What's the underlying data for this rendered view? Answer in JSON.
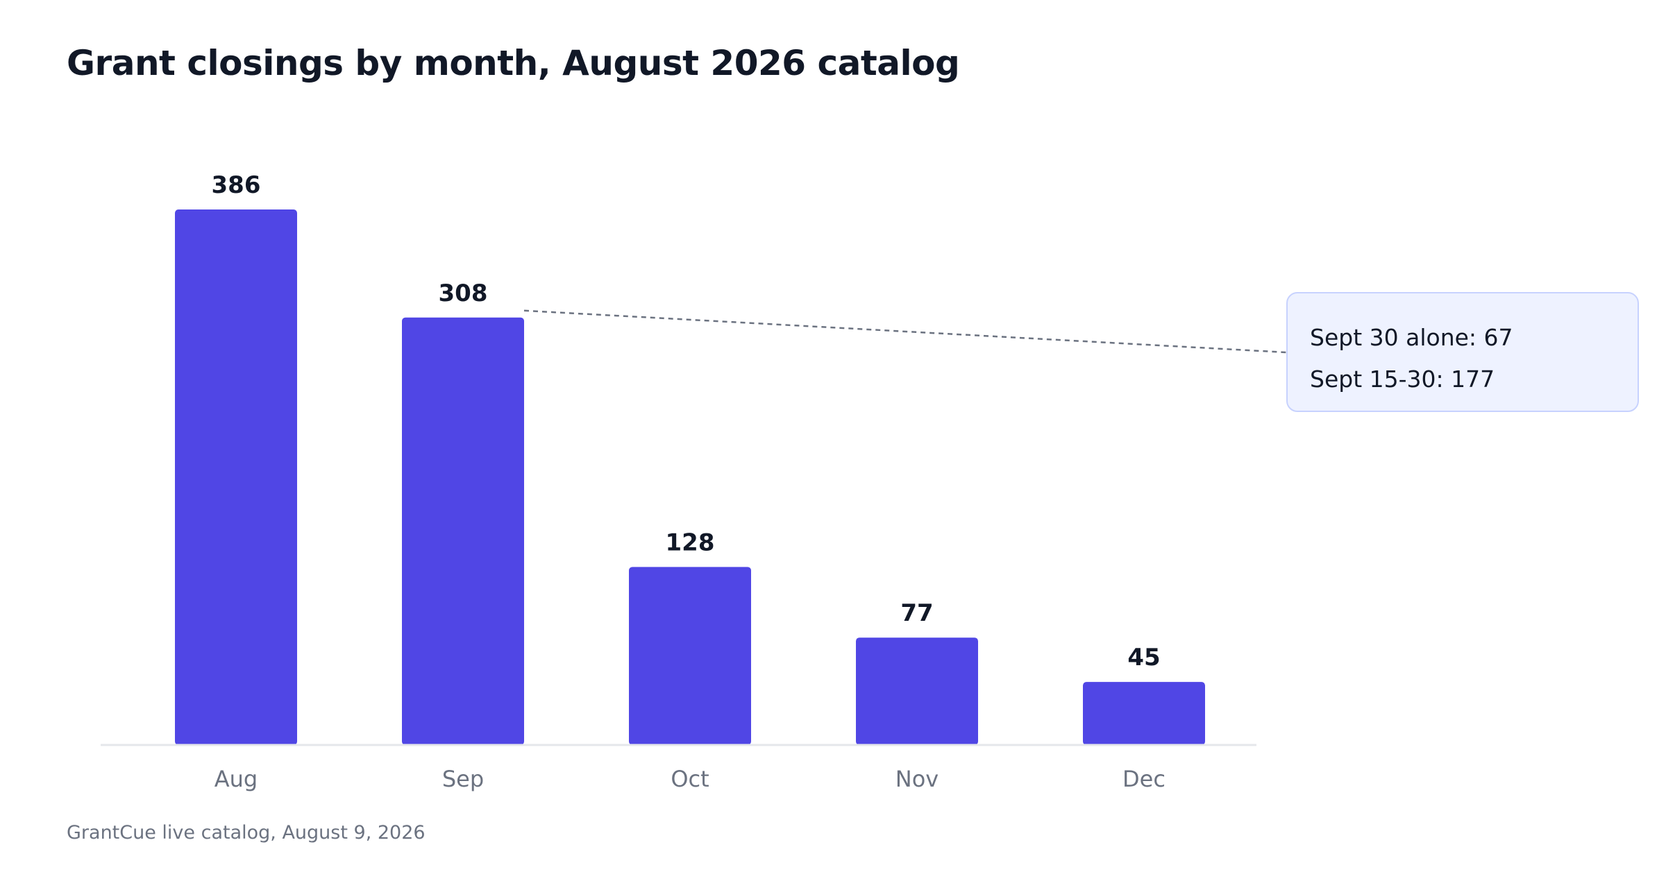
{
  "chart_data": {
    "type": "bar",
    "title": "Grant closings by month, August 2026 catalog",
    "categories": [
      "Aug",
      "Sep",
      "Oct",
      "Nov",
      "Dec"
    ],
    "values": [
      386,
      308,
      128,
      77,
      45
    ],
    "xlabel": "",
    "ylabel": "",
    "ylim": [
      0,
      386
    ],
    "grid": false,
    "legend": "none",
    "bar_color": "#5046e5",
    "baseline_color": "#e5e7eb",
    "annotation": {
      "target_category": "Sep",
      "lines": [
        "Sept 30 alone: 67",
        "Sept 15-30: 177"
      ],
      "background": "#eef2ff",
      "border": "#c7d2fe",
      "connector": "dashed"
    }
  },
  "footer": {
    "source": "GrantCue live catalog, August 9, 2026"
  }
}
